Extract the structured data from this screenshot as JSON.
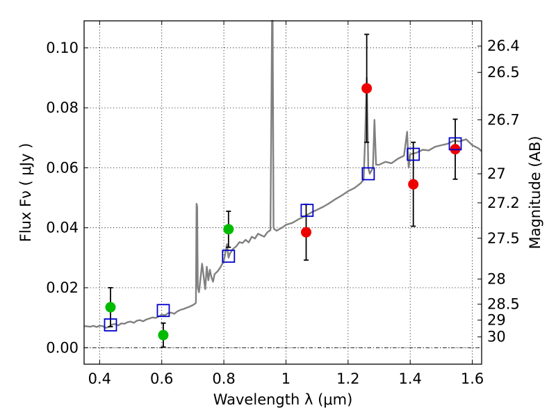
{
  "chart_data": {
    "type": "scatter",
    "xlabel": "Wavelength  λ (μm)",
    "ylabel": "Flux  Fν  ( μJy )",
    "ylabel_right": "Magnitude (AB)",
    "xlim": [
      0.35,
      1.63
    ],
    "ylim": [
      -0.0055,
      0.109
    ],
    "x_ticks": [
      0.4,
      0.6,
      0.8,
      1.0,
      1.2,
      1.4,
      1.6
    ],
    "x_tick_labels": [
      "0.4",
      "0.6",
      "0.8",
      "1",
      "1.2",
      "1.4",
      "1.6"
    ],
    "y_ticks": [
      0.0,
      0.02,
      0.04,
      0.06,
      0.08,
      0.1
    ],
    "y_tick_labels": [
      "0.00",
      "0.02",
      "0.04",
      "0.06",
      "0.08",
      "0.10"
    ],
    "right_ticks": [
      {
        "flux": 0.1006,
        "label": "26.4"
      },
      {
        "flux": 0.0918,
        "label": "26.5"
      },
      {
        "flux": 0.076,
        "label": "26.7"
      },
      {
        "flux": 0.058,
        "label": "27"
      },
      {
        "flux": 0.0483,
        "label": "27.2"
      },
      {
        "flux": 0.0365,
        "label": "27.5"
      },
      {
        "flux": 0.0229,
        "label": "28"
      },
      {
        "flux": 0.0145,
        "label": "28.5"
      },
      {
        "flux": 0.0092,
        "label": "29"
      },
      {
        "flux": 0.0036,
        "label": "30"
      }
    ],
    "grid": true,
    "colors": {
      "spectrum": "#808080",
      "green_points": "#00bb00",
      "red_points": "#ee0000",
      "model_squares": "#0000cc",
      "error_bars": "#000000",
      "zero_line": "#000000"
    },
    "series": [
      {
        "name": "spectrum",
        "kind": "line",
        "x": [
          0.35,
          0.36,
          0.37,
          0.38,
          0.39,
          0.4,
          0.41,
          0.42,
          0.43,
          0.44,
          0.45,
          0.46,
          0.47,
          0.48,
          0.49,
          0.5,
          0.51,
          0.52,
          0.53,
          0.54,
          0.55,
          0.56,
          0.57,
          0.58,
          0.59,
          0.6,
          0.61,
          0.62,
          0.63,
          0.64,
          0.65,
          0.66,
          0.67,
          0.68,
          0.69,
          0.7,
          0.705,
          0.71,
          0.712,
          0.714,
          0.716,
          0.72,
          0.73,
          0.74,
          0.745,
          0.75,
          0.755,
          0.76,
          0.765,
          0.77,
          0.78,
          0.79,
          0.8,
          0.81,
          0.815,
          0.82,
          0.83,
          0.84,
          0.85,
          0.86,
          0.87,
          0.88,
          0.89,
          0.9,
          0.91,
          0.92,
          0.93,
          0.94,
          0.95,
          0.953,
          0.955,
          0.957,
          0.96,
          0.963,
          0.97,
          0.98,
          0.99,
          1.0,
          1.02,
          1.04,
          1.06,
          1.08,
          1.1,
          1.12,
          1.14,
          1.16,
          1.18,
          1.2,
          1.22,
          1.24,
          1.25,
          1.255,
          1.26,
          1.265,
          1.27,
          1.28,
          1.285,
          1.29,
          1.3,
          1.32,
          1.34,
          1.36,
          1.38,
          1.39,
          1.395,
          1.4,
          1.42,
          1.44,
          1.46,
          1.48,
          1.5,
          1.52,
          1.54,
          1.56,
          1.58,
          1.6,
          1.62,
          1.63
        ],
        "y": [
          0.0072,
          0.0071,
          0.007,
          0.0073,
          0.0069,
          0.0073,
          0.0072,
          0.0066,
          0.007,
          0.0077,
          0.0079,
          0.0074,
          0.0081,
          0.008,
          0.0085,
          0.0087,
          0.0083,
          0.009,
          0.0092,
          0.0088,
          0.0094,
          0.0097,
          0.0101,
          0.0099,
          0.0104,
          0.011,
          0.0108,
          0.0115,
          0.0117,
          0.0113,
          0.0121,
          0.0126,
          0.0129,
          0.0133,
          0.0137,
          0.0142,
          0.0145,
          0.015,
          0.048,
          0.047,
          0.02,
          0.0185,
          0.028,
          0.0195,
          0.027,
          0.0225,
          0.026,
          0.0235,
          0.022,
          0.0245,
          0.0255,
          0.027,
          0.029,
          0.0345,
          0.03,
          0.0315,
          0.033,
          0.0338,
          0.0352,
          0.0349,
          0.036,
          0.0351,
          0.037,
          0.0364,
          0.038,
          0.0375,
          0.037,
          0.0385,
          0.0392,
          0.08,
          0.11,
          0.11,
          0.04,
          0.0395,
          0.039,
          0.0396,
          0.0402,
          0.041,
          0.0416,
          0.0428,
          0.0438,
          0.045,
          0.046,
          0.047,
          0.0482,
          0.0496,
          0.0508,
          0.0522,
          0.0532,
          0.0548,
          0.056,
          0.07,
          0.09,
          0.06,
          0.058,
          0.06,
          0.076,
          0.061,
          0.061,
          0.062,
          0.0615,
          0.063,
          0.064,
          0.072,
          0.06,
          0.0645,
          0.065,
          0.066,
          0.0658,
          0.067,
          0.0675,
          0.068,
          0.069,
          0.0688,
          0.0695,
          0.0675,
          0.0665,
          0.0655
        ]
      },
      {
        "name": "green photometry",
        "kind": "points",
        "x": [
          0.435,
          0.605,
          0.815
        ],
        "y": [
          0.0135,
          0.0042,
          0.0395
        ],
        "err_low": [
          0.0065,
          0.004,
          0.006
        ],
        "err_high": [
          0.0065,
          0.004,
          0.006
        ]
      },
      {
        "name": "red photometry",
        "kind": "points",
        "x": [
          1.065,
          1.26,
          1.41,
          1.545
        ],
        "y": [
          0.0385,
          0.0865,
          0.0545,
          0.0662
        ],
        "err_low": [
          0.0093,
          0.018,
          0.014,
          0.01
        ],
        "err_high": [
          0.0093,
          0.018,
          0.014,
          0.01
        ]
      },
      {
        "name": "model squares",
        "kind": "squares",
        "x": [
          0.435,
          0.605,
          0.815,
          1.068,
          1.265,
          1.41,
          1.545
        ],
        "y": [
          0.0076,
          0.0124,
          0.0305,
          0.0458,
          0.058,
          0.0645,
          0.068
        ]
      }
    ]
  }
}
